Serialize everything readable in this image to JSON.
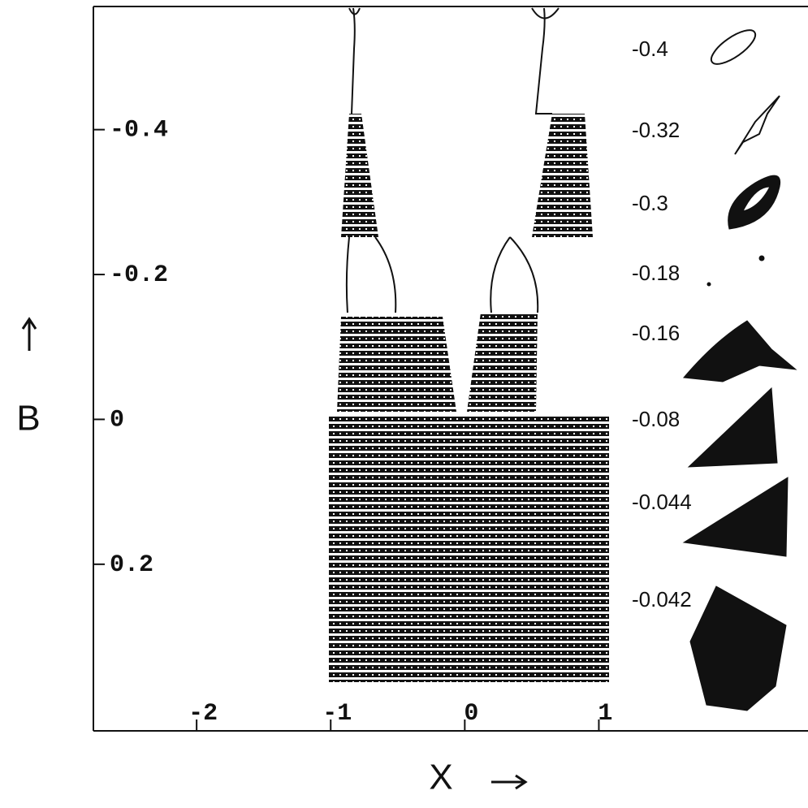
{
  "chart_data": {
    "type": "scatter",
    "x_label": "X",
    "y_label": "B",
    "xlim": [
      -2.77,
      2.56
    ],
    "xticks": [
      -2,
      -1,
      0,
      1
    ],
    "ylim": [
      -0.57,
      0.43
    ],
    "y_inverted": true,
    "yticks": [
      -0.4,
      -0.2,
      0,
      0.2
    ],
    "color": "#000000",
    "inset_labels": [
      "-0.4",
      "-0.32",
      "-0.3",
      "-0.18",
      "-0.16",
      "-0.08",
      "-0.044",
      "-0.042"
    ]
  }
}
